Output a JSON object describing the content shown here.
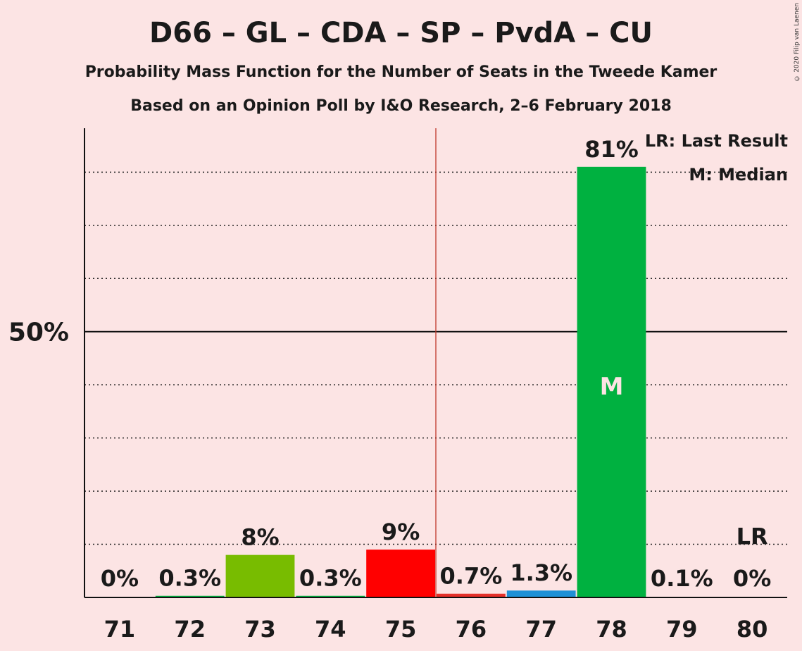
{
  "header": {
    "title": "D66 – GL – CDA – SP – PvdA – CU",
    "subtitle": "Probability Mass Function for the Number of Seats in the Tweede Kamer",
    "source": "Based on an Opinion Poll by I&O Research, 2–6 February 2018",
    "copyright": "© 2020 Filip van Laenen"
  },
  "legend": {
    "last_result": "LR: Last Result",
    "median": "M: Median"
  },
  "chart_data": {
    "type": "bar",
    "categories": [
      "71",
      "72",
      "73",
      "74",
      "75",
      "76",
      "77",
      "78",
      "79",
      "80"
    ],
    "values": [
      0,
      0.3,
      8,
      0.3,
      9,
      0.7,
      1.3,
      81,
      0.1,
      0
    ],
    "value_labels": [
      "0%",
      "0.3%",
      "8%",
      "0.3%",
      "9%",
      "0.7%",
      "1.3%",
      "81%",
      "0.1%",
      "0%"
    ],
    "bar_colors": [
      "#00b140",
      "#00b140",
      "#78bc00",
      "#00b140",
      "#ff0000",
      "#e4302a",
      "#1e90d6",
      "#00b140",
      "#00b140",
      "#00b140"
    ],
    "ylim": [
      0,
      88
    ],
    "ytick_label": "50%",
    "ytick_value": 50,
    "gridlines": [
      10,
      20,
      30,
      40,
      60,
      70,
      80
    ],
    "majority_line_between": [
      "75",
      "76"
    ],
    "median_seat": "78",
    "median_marker": "M",
    "last_result_seat": "80",
    "last_result_marker": "LR"
  }
}
